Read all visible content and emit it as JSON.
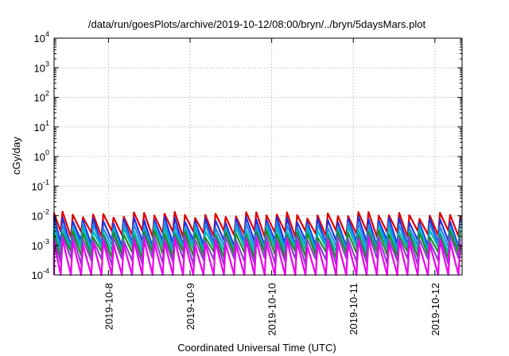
{
  "chart_data": {
    "type": "line",
    "title": "/data/run/goesPlots/archive/2019-10-12/08:00/bryn/../bryn/5daysMars.plot",
    "xlabel": "Coordinated Universal Time (UTC)",
    "ylabel": "cGy/day",
    "yscale": "log",
    "ylim": [
      0.0001,
      10000
    ],
    "xlim": [
      "2019-10-07T08:00",
      "2019-10-12T08:00"
    ],
    "grid": true,
    "x_ticks": [
      "2019-10-8",
      "2019-10-9",
      "2019-10-10",
      "2019-10-11",
      "2019-10-12"
    ],
    "y_ticks": [
      {
        "base": "10",
        "exp": "-4"
      },
      {
        "base": "10",
        "exp": "-3"
      },
      {
        "base": "10",
        "exp": "-2"
      },
      {
        "base": "10",
        "exp": "-1"
      },
      {
        "base": "10",
        "exp": "0"
      },
      {
        "base": "10",
        "exp": "1"
      },
      {
        "base": "10",
        "exp": "2"
      },
      {
        "base": "10",
        "exp": "3"
      },
      {
        "base": "10",
        "exp": "4"
      }
    ],
    "sawtooth_period_hours": 3,
    "series": [
      {
        "color": "#dd0000",
        "peak": 0.011,
        "trough": 0.0025
      },
      {
        "color": "#2233dd",
        "peak": 0.0075,
        "trough": 0.0012
      },
      {
        "color": "#2288ee",
        "peak": 0.005,
        "trough": 0.0009
      },
      {
        "color": "#00bbbb",
        "peak": 0.0035,
        "trough": 0.0007
      },
      {
        "color": "#228822",
        "peak": 0.0025,
        "trough": 0.0005
      },
      {
        "color": "#8844cc",
        "peak": 0.0018,
        "trough": 0.0003
      },
      {
        "color": "#ee00ee",
        "peak": 0.0013,
        "trough": 8e-05
      }
    ]
  }
}
